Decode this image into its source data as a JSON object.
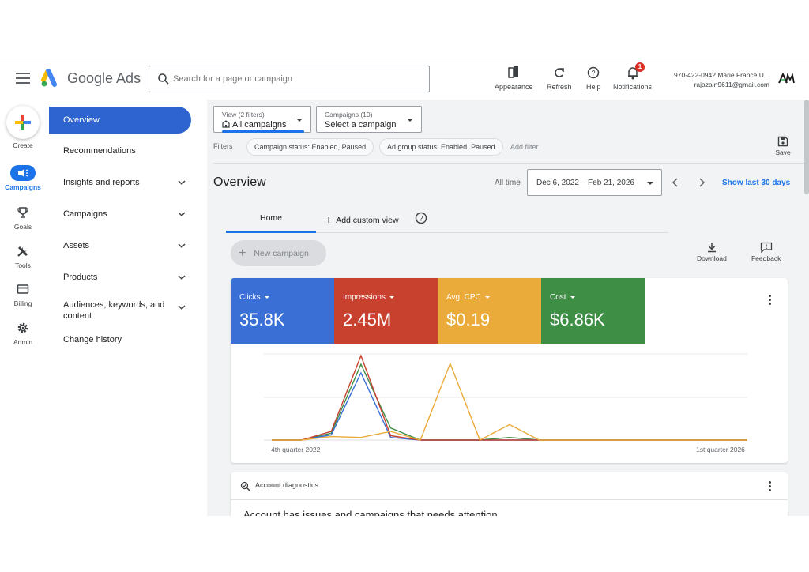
{
  "header": {
    "brand": "Google Ads",
    "search_placeholder": "Search for a page or campaign",
    "tools": [
      {
        "label": "Appearance",
        "icon": "appearance-icon"
      },
      {
        "label": "Refresh",
        "icon": "refresh-icon"
      },
      {
        "label": "Help",
        "icon": "help-icon"
      },
      {
        "label": "Notifications",
        "icon": "bell-icon"
      }
    ],
    "notification_count": "1",
    "account_line1": "970-422-0942 Marie France U...",
    "account_line2": "rajazain9611@gmail.com"
  },
  "rail": {
    "create_label": "Create",
    "items": [
      {
        "label": "Campaigns",
        "icon": "megaphone-icon",
        "active": true
      },
      {
        "label": "Goals",
        "icon": "trophy-icon"
      },
      {
        "label": "Tools",
        "icon": "tools-icon"
      },
      {
        "label": "Billing",
        "icon": "credit-card-icon"
      },
      {
        "label": "Admin",
        "icon": "gear-icon"
      }
    ]
  },
  "nav": {
    "items": [
      {
        "label": "Overview",
        "active": true
      },
      {
        "label": "Recommendations"
      },
      {
        "label": "Insights and reports",
        "expandable": true
      },
      {
        "label": "Campaigns",
        "expandable": true
      },
      {
        "label": "Assets",
        "expandable": true
      },
      {
        "label": "Products",
        "expandable": true
      },
      {
        "label": "Audiences, keywords, and content",
        "expandable": true
      },
      {
        "label": "Change history"
      }
    ]
  },
  "filters": {
    "view_small": "View (2 filters)",
    "view_value": "All campaigns",
    "campaigns_small": "Campaigns (10)",
    "campaigns_value": "Select a campaign",
    "label": "Filters",
    "chips": [
      "Campaign status: Enabled, Paused",
      "Ad group status: Enabled, Paused"
    ],
    "add_filter": "Add filter",
    "save_label": "Save"
  },
  "overview": {
    "title": "Overview",
    "all_time": "All time",
    "date_range": "Dec 6, 2022 – Feb 21, 2026",
    "show_last": "Show last 30 days",
    "tab_home": "Home",
    "add_custom_view": "Add custom view",
    "new_campaign": "New campaign",
    "download": "Download",
    "feedback": "Feedback"
  },
  "metrics": [
    {
      "name": "Clicks",
      "value": "35.8K",
      "color": "#3a70d6"
    },
    {
      "name": "Impressions",
      "value": "2.45M",
      "color": "#c8412f"
    },
    {
      "name": "Avg. CPC",
      "value": "$0.19",
      "color": "#eaab3a"
    },
    {
      "name": "Cost",
      "value": "$6.86K",
      "color": "#3e8e46"
    }
  ],
  "chart_data": {
    "type": "line",
    "x_start_label": "4th quarter 2022",
    "x_end_label": "1st quarter 2026",
    "points_count": 17,
    "series": [
      {
        "name": "Clicks",
        "color": "#3a70d6",
        "values": [
          0,
          0,
          6,
          78,
          3,
          0,
          0,
          0,
          0,
          0,
          0,
          0,
          0,
          0,
          0,
          0,
          0
        ]
      },
      {
        "name": "Impressions",
        "color": "#c8412f",
        "values": [
          0,
          0,
          10,
          98,
          5,
          0,
          0,
          0,
          0,
          0,
          0,
          0,
          0,
          0,
          0,
          0,
          0
        ]
      },
      {
        "name": "Avg. CPC",
        "color": "#eaab3a",
        "values": [
          0,
          0,
          4,
          3,
          10,
          0,
          89,
          0,
          18,
          0,
          0,
          0,
          0,
          0,
          0,
          0,
          0
        ]
      },
      {
        "name": "Cost",
        "color": "#3e8e46",
        "values": [
          0,
          0,
          8,
          88,
          14,
          0,
          0,
          0,
          3,
          0,
          0,
          0,
          0,
          0,
          0,
          0,
          0
        ]
      }
    ]
  },
  "diagnostics": {
    "title": "Account diagnostics",
    "message": "Account has issues and campaigns that needs attention"
  }
}
